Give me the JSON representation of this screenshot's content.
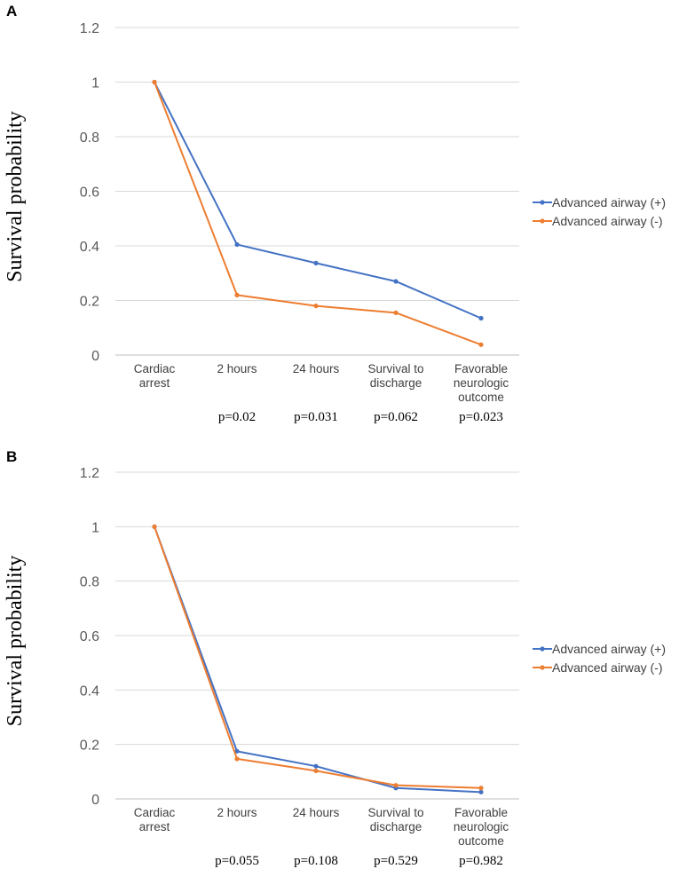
{
  "colors": {
    "series_plus": "#4472c4",
    "series_minus": "#ed7d31"
  },
  "chart_data": [
    {
      "type": "line",
      "panel_label": "A",
      "ylabel": "Survival probability",
      "ylim": [
        0,
        1.2
      ],
      "yticks": [
        "0",
        "0.2",
        "0.4",
        "0.6",
        "0.8",
        "1",
        "1.2"
      ],
      "categories": [
        [
          "Cardiac",
          "arrest"
        ],
        [
          "2 hours"
        ],
        [
          "24 hours"
        ],
        [
          "Survival to",
          "discharge"
        ],
        [
          "Favorable",
          "neurologic",
          "outcome"
        ]
      ],
      "p_values": [
        "",
        "p=0.02",
        "p=0.031",
        "p=0.062",
        "p=0.023"
      ],
      "series": [
        {
          "name": "Advanced airway (+)",
          "values": [
            1.0,
            0.405,
            0.337,
            0.27,
            0.135
          ]
        },
        {
          "name": "Advanced airway (-)",
          "values": [
            1.0,
            0.22,
            0.18,
            0.155,
            0.038
          ]
        }
      ],
      "legend": "right"
    },
    {
      "type": "line",
      "panel_label": "B",
      "ylabel": "Survival probability",
      "ylim": [
        0,
        1.2
      ],
      "yticks": [
        "0",
        "0.2",
        "0.4",
        "0.6",
        "0.8",
        "1",
        "1.2"
      ],
      "categories": [
        [
          "Cardiac",
          "arrest"
        ],
        [
          "2 hours"
        ],
        [
          "24 hours"
        ],
        [
          "Survival to",
          "discharge"
        ],
        [
          "Favorable",
          "neurologic",
          "outcome"
        ]
      ],
      "p_values": [
        "",
        "p=0.055",
        "p=0.108",
        "p=0.529",
        "p=0.982"
      ],
      "series": [
        {
          "name": "Advanced airway (+)",
          "values": [
            1.0,
            0.175,
            0.12,
            0.04,
            0.025
          ]
        },
        {
          "name": "Advanced airway (-)",
          "values": [
            1.0,
            0.147,
            0.103,
            0.05,
            0.04
          ]
        }
      ],
      "legend": "right"
    }
  ]
}
